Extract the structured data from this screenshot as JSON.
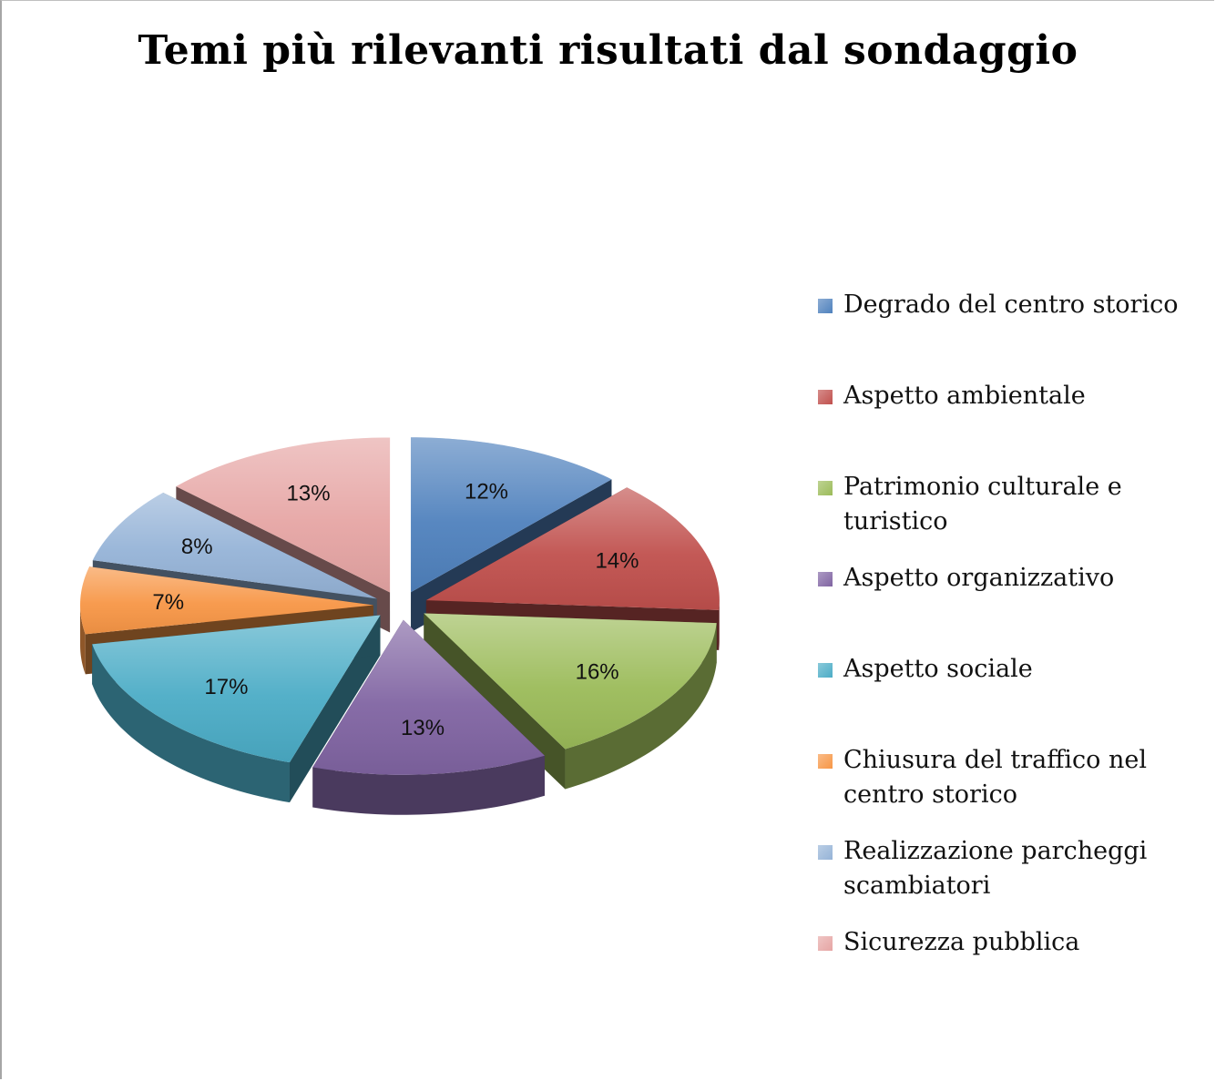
{
  "chart_data": {
    "type": "pie",
    "style": "exploded 3D pie",
    "title": "Temi più rilevanti risultati dal sondaggio",
    "legend_position": "right",
    "categories": [
      "Degrado del centro storico",
      "Aspetto ambientale",
      "Patrimonio culturale e turistico",
      "Aspetto organizzativo",
      "Aspetto sociale",
      "Chiusura del traffico nel centro storico",
      "Realizzazione parcheggi scambiatori",
      "Sicurezza pubblica"
    ],
    "values": [
      12,
      14,
      16,
      13,
      17,
      7,
      8,
      13
    ],
    "labels": [
      "12%",
      "14%",
      "16%",
      "13%",
      "17%",
      "7%",
      "8%",
      "13%"
    ],
    "colors": [
      "#4f81bd",
      "#c0504d",
      "#9bbb59",
      "#8064a2",
      "#4bacc6",
      "#f79646",
      "#95b3d7",
      "#e6a5a4"
    ]
  },
  "legend": [
    {
      "label": "Degrado del centro storico",
      "color": "#4f81bd"
    },
    {
      "label": "Aspetto ambientale",
      "color": "#c0504d"
    },
    {
      "label": "Patrimonio culturale e turistico",
      "color": "#9bbb59"
    },
    {
      "label": "Aspetto organizzativo",
      "color": "#8064a2"
    },
    {
      "label": "Aspetto sociale",
      "color": "#4bacc6"
    },
    {
      "label": "Chiusura del traffico nel centro storico",
      "color": "#f79646"
    },
    {
      "label": "Realizzazione parcheggi scambiatori",
      "color": "#95b3d7"
    },
    {
      "label": "Sicurezza pubblica",
      "color": "#e6a5a4"
    }
  ]
}
